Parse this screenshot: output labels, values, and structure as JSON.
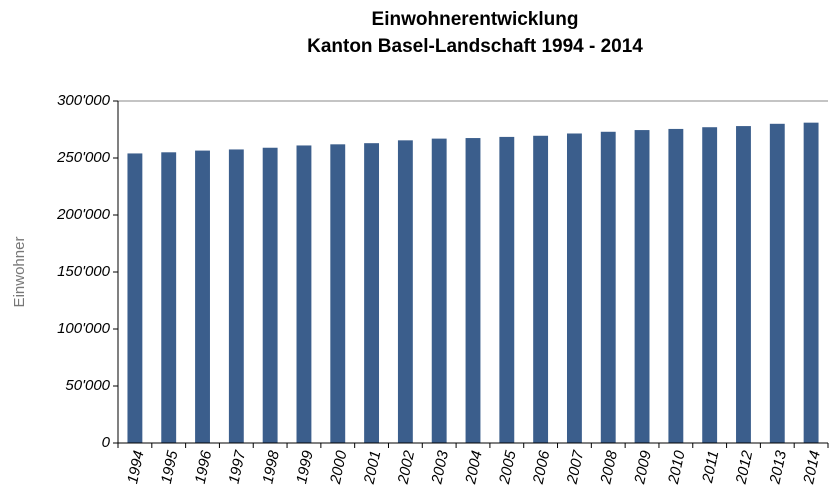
{
  "chart_data": {
    "type": "bar",
    "title": "Einwohnerentwicklung",
    "subtitle": "Kanton Basel-Landschaft 1994 - 2014",
    "y_label": "Einwohner",
    "categories": [
      "1994",
      "1995",
      "1996",
      "1997",
      "1998",
      "1999",
      "2000",
      "2001",
      "2002",
      "2003",
      "2004",
      "2005",
      "2006",
      "2007",
      "2008",
      "2009",
      "2010",
      "2011",
      "2012",
      "2013",
      "2014"
    ],
    "values": [
      254000,
      255000,
      256500,
      257500,
      259000,
      261000,
      262000,
      263000,
      265500,
      267000,
      267500,
      268500,
      269500,
      271500,
      273000,
      274500,
      275500,
      277000,
      278000,
      280000,
      281000
    ],
    "color": "#3b5e8c",
    "ylim": [
      0,
      300000
    ],
    "yticks": [
      0,
      {
        "value": 50000,
        "label": "50'000"
      },
      {
        "value": 100000,
        "label": "100'000"
      },
      {
        "value": 150000,
        "label": "150'000"
      },
      {
        "value": 200000,
        "label": "200'000"
      },
      {
        "value": 250000,
        "label": "250'000"
      },
      {
        "value": 300000,
        "label": "300'000"
      }
    ],
    "grid": false
  }
}
